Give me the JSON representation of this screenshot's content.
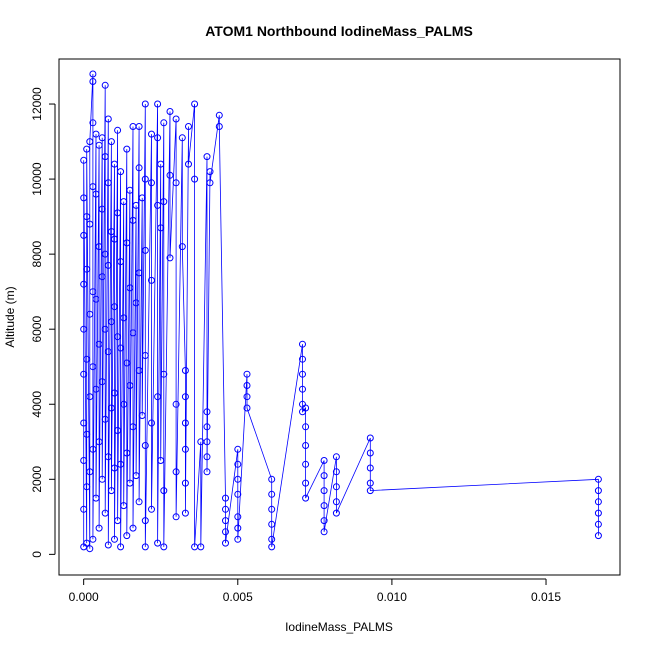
{
  "chart_data": {
    "type": "scatter",
    "title": "ATOM1 Northbound IodineMass_PALMS",
    "xlabel": "IodineMass_PALMS",
    "ylabel": "Altitude (m)",
    "xlim": [
      -0.0008,
      0.0174
    ],
    "ylim": [
      -550,
      13200
    ],
    "x_ticks": [
      0,
      0.005,
      0.01,
      0.015
    ],
    "x_tick_labels": [
      "0.000",
      "0.005",
      "0.010",
      "0.015"
    ],
    "y_ticks": [
      0,
      2000,
      4000,
      6000,
      8000,
      10000,
      12000
    ],
    "y_tick_labels": [
      "0",
      "2000",
      "4000",
      "6000",
      "8000",
      "10000",
      "12000"
    ],
    "grid": false,
    "legend": "none",
    "marker": "open-circle",
    "connected": true,
    "series": [
      {
        "color": "#0000ff",
        "points": [
          [
            0.0,
            200
          ],
          [
            0.0,
            1200
          ],
          [
            0.0,
            2500
          ],
          [
            0.0,
            3500
          ],
          [
            0.0,
            4800
          ],
          [
            0.0,
            6000
          ],
          [
            0.0,
            7200
          ],
          [
            0.0,
            8500
          ],
          [
            0.0,
            9500
          ],
          [
            0.0,
            10500
          ],
          [
            0.0001,
            300
          ],
          [
            0.0001,
            1800
          ],
          [
            0.0001,
            3200
          ],
          [
            0.0001,
            5200
          ],
          [
            0.0001,
            7600
          ],
          [
            0.0001,
            9000
          ],
          [
            0.0001,
            10800
          ],
          [
            0.0002,
            150
          ],
          [
            0.0002,
            2200
          ],
          [
            0.0002,
            4200
          ],
          [
            0.0002,
            6400
          ],
          [
            0.0002,
            8800
          ],
          [
            0.0002,
            11000
          ],
          [
            0.0003,
            12800
          ],
          [
            0.0003,
            12600
          ],
          [
            0.0003,
            11500
          ],
          [
            0.0003,
            9800
          ],
          [
            0.0003,
            7000
          ],
          [
            0.0003,
            5000
          ],
          [
            0.0003,
            2800
          ],
          [
            0.0003,
            400
          ],
          [
            0.0004,
            11200
          ],
          [
            0.0004,
            9600
          ],
          [
            0.0004,
            6800
          ],
          [
            0.0004,
            4400
          ],
          [
            0.0004,
            1500
          ],
          [
            0.0005,
            10900
          ],
          [
            0.0005,
            8200
          ],
          [
            0.0005,
            5600
          ],
          [
            0.0005,
            3000
          ],
          [
            0.0005,
            700
          ],
          [
            0.0006,
            11100
          ],
          [
            0.0006,
            9200
          ],
          [
            0.0006,
            7400
          ],
          [
            0.0006,
            4600
          ],
          [
            0.0006,
            2000
          ],
          [
            0.0007,
            12500
          ],
          [
            0.0007,
            10600
          ],
          [
            0.0007,
            8000
          ],
          [
            0.0007,
            6000
          ],
          [
            0.0007,
            3600
          ],
          [
            0.0007,
            1100
          ],
          [
            0.0008,
            11600
          ],
          [
            0.0008,
            9900
          ],
          [
            0.0008,
            7700
          ],
          [
            0.0008,
            5400
          ],
          [
            0.0008,
            2600
          ],
          [
            0.0008,
            250
          ],
          [
            0.0009,
            11000
          ],
          [
            0.0009,
            8600
          ],
          [
            0.0009,
            6200
          ],
          [
            0.0009,
            3900
          ],
          [
            0.0009,
            1700
          ],
          [
            0.001,
            10400
          ],
          [
            0.001,
            8400
          ],
          [
            0.001,
            6600
          ],
          [
            0.001,
            4300
          ],
          [
            0.001,
            2300
          ],
          [
            0.001,
            400
          ],
          [
            0.0011,
            11300
          ],
          [
            0.0011,
            9100
          ],
          [
            0.0011,
            5800
          ],
          [
            0.0011,
            3300
          ],
          [
            0.0011,
            900
          ],
          [
            0.0012,
            10200
          ],
          [
            0.0012,
            7800
          ],
          [
            0.0012,
            5500
          ],
          [
            0.0012,
            2400
          ],
          [
            0.0012,
            200
          ],
          [
            0.0013,
            9400
          ],
          [
            0.0013,
            6300
          ],
          [
            0.0013,
            4000
          ],
          [
            0.0013,
            1300
          ],
          [
            0.0014,
            10800
          ],
          [
            0.0014,
            8300
          ],
          [
            0.0014,
            5100
          ],
          [
            0.0014,
            2700
          ],
          [
            0.0014,
            500
          ],
          [
            0.0015,
            9700
          ],
          [
            0.0015,
            7100
          ],
          [
            0.0015,
            4500
          ],
          [
            0.0015,
            1900
          ],
          [
            0.0016,
            11400
          ],
          [
            0.0016,
            8900
          ],
          [
            0.0016,
            5900
          ],
          [
            0.0016,
            3400
          ],
          [
            0.0016,
            700
          ],
          [
            0.0017,
            9300
          ],
          [
            0.0017,
            6700
          ],
          [
            0.0017,
            2100
          ],
          [
            0.0018,
            11400
          ],
          [
            0.0018,
            10300
          ],
          [
            0.0018,
            7500
          ],
          [
            0.0018,
            4900
          ],
          [
            0.0018,
            1400
          ],
          [
            0.0019,
            9500
          ],
          [
            0.0019,
            3700
          ],
          [
            0.002,
            12000
          ],
          [
            0.002,
            10000
          ],
          [
            0.002,
            8100
          ],
          [
            0.002,
            5300
          ],
          [
            0.002,
            2900
          ],
          [
            0.002,
            900
          ],
          [
            0.002,
            200
          ],
          [
            0.0022,
            11200
          ],
          [
            0.0022,
            9900
          ],
          [
            0.0022,
            7300
          ],
          [
            0.0022,
            3500
          ],
          [
            0.0022,
            1200
          ],
          [
            0.0024,
            12000
          ],
          [
            0.0024,
            11100
          ],
          [
            0.0024,
            9300
          ],
          [
            0.0024,
            4200
          ],
          [
            0.0024,
            300
          ],
          [
            0.0025,
            10400
          ],
          [
            0.0025,
            8700
          ],
          [
            0.0025,
            2500
          ],
          [
            0.0026,
            11500
          ],
          [
            0.0026,
            9400
          ],
          [
            0.0026,
            4800
          ],
          [
            0.0026,
            1700
          ],
          [
            0.0026,
            200
          ],
          [
            0.0028,
            11800
          ],
          [
            0.0028,
            10100
          ],
          [
            0.0028,
            7900
          ],
          [
            0.003,
            11600
          ],
          [
            0.003,
            9900
          ],
          [
            0.003,
            4000
          ],
          [
            0.003,
            2200
          ],
          [
            0.003,
            1000
          ],
          [
            0.0032,
            11100
          ],
          [
            0.0032,
            8200
          ],
          [
            0.0033,
            4900
          ],
          [
            0.0033,
            4200
          ],
          [
            0.0033,
            3500
          ],
          [
            0.0033,
            2800
          ],
          [
            0.0033,
            1900
          ],
          [
            0.0033,
            1100
          ],
          [
            0.0034,
            11400
          ],
          [
            0.0034,
            10400
          ],
          [
            0.0036,
            12000
          ],
          [
            0.0036,
            10000
          ],
          [
            0.0036,
            200
          ],
          [
            0.0038,
            3000
          ],
          [
            0.0038,
            200
          ],
          [
            0.004,
            10600
          ],
          [
            0.004,
            3800
          ],
          [
            0.004,
            3400
          ],
          [
            0.004,
            3000
          ],
          [
            0.004,
            2600
          ],
          [
            0.004,
            2200
          ],
          [
            0.0041,
            10200
          ],
          [
            0.0041,
            9900
          ],
          [
            0.0044,
            11700
          ],
          [
            0.0044,
            11400
          ],
          [
            0.0046,
            1500
          ],
          [
            0.0046,
            1200
          ],
          [
            0.0046,
            900
          ],
          [
            0.0046,
            600
          ],
          [
            0.0046,
            300
          ],
          [
            0.005,
            2800
          ],
          [
            0.005,
            2400
          ],
          [
            0.005,
            2000
          ],
          [
            0.005,
            1600
          ],
          [
            0.005,
            1000
          ],
          [
            0.005,
            700
          ],
          [
            0.005,
            400
          ],
          [
            0.0053,
            4800
          ],
          [
            0.0053,
            4500
          ],
          [
            0.0053,
            4200
          ],
          [
            0.0053,
            3900
          ],
          [
            0.0061,
            2000
          ],
          [
            0.0061,
            1600
          ],
          [
            0.0061,
            1200
          ],
          [
            0.0061,
            800
          ],
          [
            0.0061,
            400
          ],
          [
            0.0061,
            200
          ],
          [
            0.0071,
            5600
          ],
          [
            0.0071,
            5200
          ],
          [
            0.0071,
            4800
          ],
          [
            0.0071,
            4400
          ],
          [
            0.0071,
            4000
          ],
          [
            0.0071,
            3800
          ],
          [
            0.0072,
            3900
          ],
          [
            0.0072,
            3400
          ],
          [
            0.0072,
            2900
          ],
          [
            0.0072,
            2400
          ],
          [
            0.0072,
            1900
          ],
          [
            0.0072,
            1500
          ],
          [
            0.0078,
            2500
          ],
          [
            0.0078,
            2100
          ],
          [
            0.0078,
            1700
          ],
          [
            0.0078,
            1300
          ],
          [
            0.0078,
            900
          ],
          [
            0.0078,
            600
          ],
          [
            0.0082,
            2600
          ],
          [
            0.0082,
            2200
          ],
          [
            0.0082,
            1800
          ],
          [
            0.0082,
            1400
          ],
          [
            0.0082,
            1100
          ],
          [
            0.0093,
            3100
          ],
          [
            0.0093,
            2700
          ],
          [
            0.0093,
            2300
          ],
          [
            0.0093,
            1900
          ],
          [
            0.0093,
            1700
          ],
          [
            0.0167,
            2000
          ],
          [
            0.0167,
            1700
          ],
          [
            0.0167,
            1400
          ],
          [
            0.0167,
            1100
          ],
          [
            0.0167,
            800
          ],
          [
            0.0167,
            500
          ]
        ]
      }
    ]
  }
}
